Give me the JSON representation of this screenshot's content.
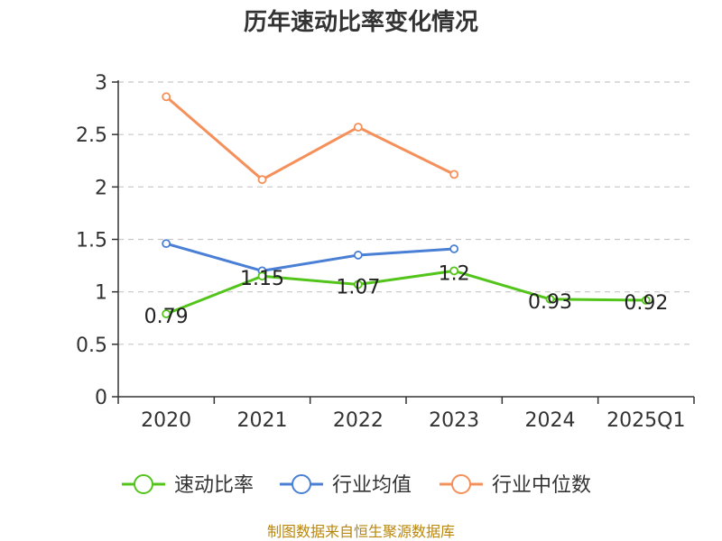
{
  "chart_data": {
    "type": "line",
    "title": "历年速动比率变化情况",
    "categories": [
      "2020",
      "2021",
      "2022",
      "2023",
      "2024",
      "2025Q1"
    ],
    "y_ticks": [
      "0",
      "0.5",
      "1",
      "1.5",
      "2",
      "2.5",
      "3"
    ],
    "ylim": [
      0,
      3
    ],
    "grid": true,
    "legend_position": "bottom",
    "series": [
      {
        "name": "速动比率",
        "color": "#52c41a",
        "values": [
          0.79,
          1.15,
          1.07,
          1.2,
          0.93,
          0.92
        ],
        "labels": [
          "0.79",
          "1.15",
          "1.07",
          "1.2",
          "0.93",
          "0.92"
        ],
        "show_labels": true
      },
      {
        "name": "行业均值",
        "color": "#4a7fd6",
        "values": [
          1.46,
          1.2,
          1.35,
          1.41,
          null,
          null
        ],
        "show_labels": false
      },
      {
        "name": "行业中位数",
        "color": "#f5905a",
        "values": [
          2.86,
          2.07,
          2.57,
          2.12,
          null,
          null
        ],
        "show_labels": false
      }
    ],
    "source": "制图数据来自恒生聚源数据库"
  }
}
